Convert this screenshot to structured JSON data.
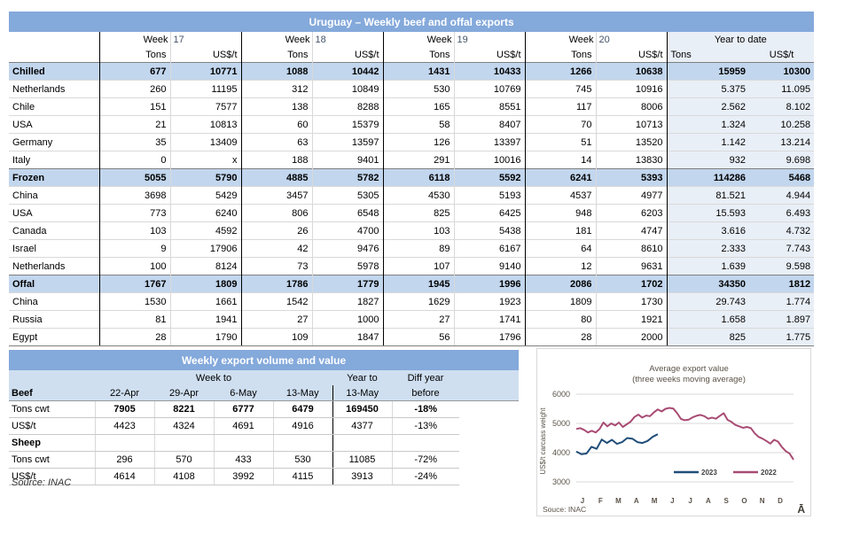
{
  "colors": {
    "titlebar": "#84A9DB",
    "section_row": "#C2D6EE",
    "ytd_bg": "#E9EFF7",
    "header_bg": "#CFDFF0",
    "series_2023": "#1F4E79",
    "series_2022": "#A84B73"
  },
  "main_table": {
    "title": "Uruguay – Weekly beef and offal exports",
    "week_label": "Week",
    "weeks": [
      "17",
      "18",
      "19",
      "20"
    ],
    "col_tons": "Tons",
    "col_usdt": "US$/t",
    "ytd_label": "Year to date",
    "ytd_tons": "Tons",
    "ytd_usdt": "US$/t",
    "rows": [
      {
        "label": "Chilled",
        "type": "section",
        "v": [
          "677",
          "10771",
          "1088",
          "10442",
          "1431",
          "10433",
          "1266",
          "10638",
          "15959",
          "10300"
        ]
      },
      {
        "label": "Netherlands",
        "type": "item",
        "v": [
          "260",
          "11195",
          "312",
          "10849",
          "530",
          "10769",
          "745",
          "10916",
          "5.375",
          "11.095"
        ]
      },
      {
        "label": "Chile",
        "type": "item",
        "v": [
          "151",
          "7577",
          "138",
          "8288",
          "165",
          "8551",
          "117",
          "8006",
          "2.562",
          "8.102"
        ]
      },
      {
        "label": "USA",
        "type": "item",
        "v": [
          "21",
          "10813",
          "60",
          "15379",
          "58",
          "8407",
          "70",
          "10713",
          "1.324",
          "10.258"
        ]
      },
      {
        "label": "Germany",
        "type": "item",
        "v": [
          "35",
          "13409",
          "63",
          "13597",
          "126",
          "13397",
          "51",
          "13520",
          "1.142",
          "13.214"
        ]
      },
      {
        "label": "Italy",
        "type": "item",
        "v": [
          "0",
          "x",
          "188",
          "9401",
          "291",
          "10016",
          "14",
          "13830",
          "932",
          "9.698"
        ]
      },
      {
        "label": "Frozen",
        "type": "section",
        "v": [
          "5055",
          "5790",
          "4885",
          "5782",
          "6118",
          "5592",
          "6241",
          "5393",
          "114286",
          "5468"
        ]
      },
      {
        "label": "China",
        "type": "item",
        "v": [
          "3698",
          "5429",
          "3457",
          "5305",
          "4530",
          "5193",
          "4537",
          "4977",
          "81.521",
          "4.944"
        ]
      },
      {
        "label": "USA",
        "type": "item",
        "v": [
          "773",
          "6240",
          "806",
          "6548",
          "825",
          "6425",
          "948",
          "6203",
          "15.593",
          "6.493"
        ]
      },
      {
        "label": "Canada",
        "type": "item",
        "v": [
          "103",
          "4592",
          "26",
          "4700",
          "103",
          "5438",
          "181",
          "4747",
          "3.616",
          "4.732"
        ]
      },
      {
        "label": "Israel",
        "type": "item",
        "v": [
          "9",
          "17906",
          "42",
          "9476",
          "89",
          "6167",
          "64",
          "8610",
          "2.333",
          "7.743"
        ]
      },
      {
        "label": "Netherlands",
        "type": "item",
        "v": [
          "100",
          "8124",
          "73",
          "5978",
          "107",
          "9140",
          "12",
          "9631",
          "1.639",
          "9.598"
        ]
      },
      {
        "label": "Offal",
        "type": "section",
        "v": [
          "1767",
          "1809",
          "1786",
          "1779",
          "1945",
          "1996",
          "2086",
          "1702",
          "34350",
          "1812"
        ]
      },
      {
        "label": "China",
        "type": "item",
        "v": [
          "1530",
          "1661",
          "1542",
          "1827",
          "1629",
          "1923",
          "1809",
          "1730",
          "29.743",
          "1.774"
        ]
      },
      {
        "label": "Russia",
        "type": "item",
        "v": [
          "81",
          "1941",
          "27",
          "1000",
          "27",
          "1741",
          "80",
          "1921",
          "1.658",
          "1.897"
        ]
      },
      {
        "label": "Egypt",
        "type": "item",
        "v": [
          "28",
          "1790",
          "109",
          "1847",
          "56",
          "1796",
          "28",
          "2000",
          "825",
          "1.775"
        ]
      }
    ]
  },
  "weekly_table": {
    "title": "Weekly export volume and value",
    "week_to": "Week to",
    "year_to": "Year to",
    "diff_line1": "Diff year",
    "beef_label": "Beef",
    "dates": [
      "22-Apr",
      "29-Apr",
      "6-May",
      "13-May"
    ],
    "year_date": "13-May",
    "diff_line2": "before",
    "rows": [
      {
        "label": "Tons cwt",
        "bold_values": true,
        "v": [
          "7905",
          "8221",
          "6777",
          "6479",
          "169450",
          "-18%"
        ]
      },
      {
        "label": "US$/t",
        "v": [
          "4423",
          "4324",
          "4691",
          "4916",
          "4377",
          "-13%"
        ]
      },
      {
        "label": "Sheep",
        "bold_label": true,
        "v": [
          "",
          "",
          "",
          "",
          "",
          ""
        ]
      },
      {
        "label": "Tons cwt",
        "v": [
          "296",
          "570",
          "433",
          "530",
          "11085",
          "-72%"
        ]
      },
      {
        "label": "US$/t",
        "v": [
          "4614",
          "4108",
          "3992",
          "4115",
          "3913",
          "-24%"
        ]
      }
    ],
    "source": "Source: INAC"
  },
  "chart_data": {
    "type": "line",
    "title": "Average export  value",
    "subtitle": "(three weeks moving average)",
    "ylabel": "US$/t carcass weight",
    "ylim": [
      3000,
      6000
    ],
    "yticks": [
      3000,
      4000,
      5000,
      6000
    ],
    "months": [
      "J",
      "F",
      "M",
      "A",
      "M",
      "J",
      "J",
      "A",
      "S",
      "O",
      "N",
      "D"
    ],
    "grid": "horizontal",
    "legend_position": "bottom-center",
    "series": [
      {
        "name": "2023",
        "color": "#1F4E79",
        "x_fraction": 0.375,
        "values": [
          4040,
          3950,
          3970,
          4200,
          4130,
          4450,
          4330,
          4440,
          4300,
          4360,
          4500,
          4480,
          4360,
          4330,
          4400,
          4540,
          4630
        ]
      },
      {
        "name": "2022",
        "color": "#A84B73",
        "x_fraction": 1.0,
        "values": [
          4810,
          4840,
          4780,
          4690,
          4750,
          4690,
          4810,
          5030,
          4900,
          5000,
          4930,
          5030,
          4880,
          4970,
          5060,
          5220,
          5300,
          5200,
          5270,
          5250,
          5375,
          5480,
          5410,
          5500,
          5530,
          5510,
          5350,
          5150,
          5110,
          5130,
          5210,
          5260,
          5290,
          5250,
          5160,
          5200,
          5160,
          5260,
          5350,
          5120,
          5050,
          4950,
          4900,
          4850,
          4880,
          4840,
          4660,
          4540,
          4480,
          4400,
          4310,
          4440,
          4380,
          4190,
          4050,
          3970,
          3760
        ]
      }
    ],
    "source": "Souce: INAC",
    "corner_glyph": "Ā"
  }
}
